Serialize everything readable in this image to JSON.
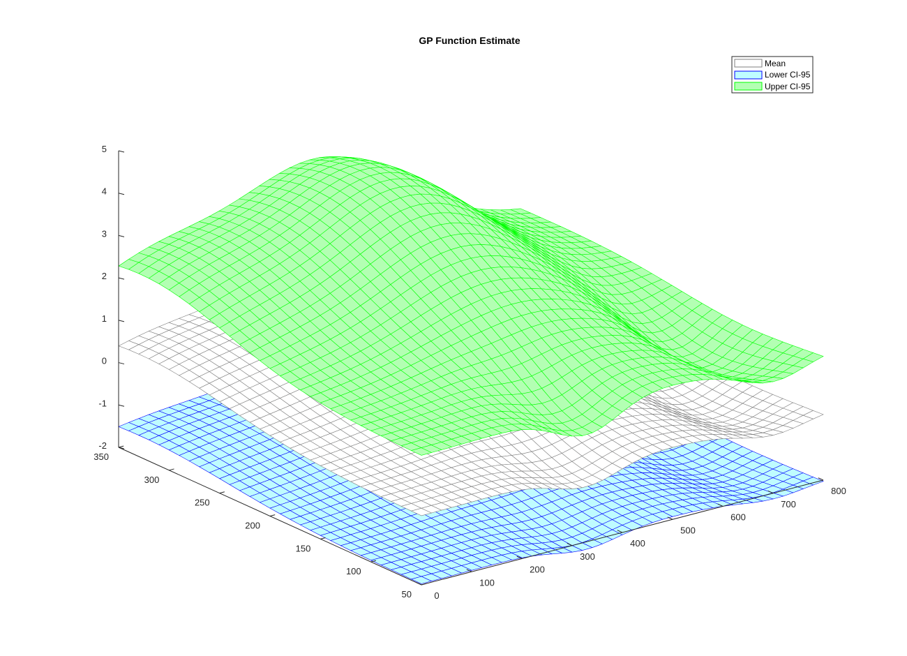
{
  "chart_data": {
    "type": "surface",
    "title": "GP Function Estimate",
    "xlabel": "",
    "ylabel": "",
    "zlabel": "",
    "xlim": [
      0,
      800
    ],
    "ylim": [
      50,
      350
    ],
    "zlim": [
      -2,
      5
    ],
    "x_ticks": [
      "0",
      "100",
      "200",
      "300",
      "400",
      "500",
      "600",
      "700",
      "800"
    ],
    "y_ticks": [
      "50",
      "100",
      "150",
      "200",
      "250",
      "300",
      "350"
    ],
    "z_ticks": [
      "-2",
      "-1",
      "0",
      "1",
      "2",
      "3",
      "4",
      "5"
    ],
    "grid": false,
    "legend_position": "top-right",
    "series": [
      {
        "name": "Mean",
        "face_color": "#ffffff",
        "edge_color": "#7f7f7f",
        "z_range": [
          -0.9,
          1.4
        ]
      },
      {
        "name": "Lower CI-95",
        "face_color": "#bffcff",
        "edge_color": "#0000ff",
        "z_range": [
          -2.3,
          -0.9
        ]
      },
      {
        "name": "Upper CI-95",
        "face_color": "#b3ffb3",
        "edge_color": "#00ff00",
        "z_range": [
          0.2,
          3.9
        ]
      }
    ]
  }
}
